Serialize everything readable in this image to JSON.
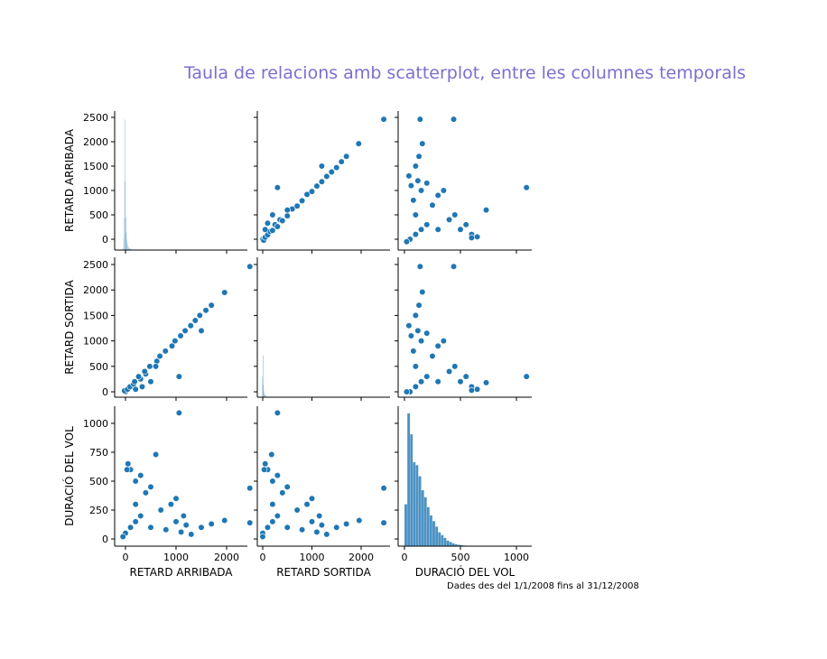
{
  "title": "Taula de relacions amb scatterplot, entre les columnes temporals",
  "footnote": "Dades des del 1/1/2008 fins al 31/12/2008",
  "chart_data": [
    {
      "type": "histogram",
      "ylabel": "RETARD ARRIBADA",
      "color": "#1f77b4",
      "xlim": [
        -214,
        2411
      ],
      "ylim": [
        -222,
        2630
      ],
      "yticks": [
        0,
        500,
        1000,
        1500,
        2000,
        2500
      ],
      "y2lim": [
        0,
        1000000
      ],
      "bins": [
        -60,
        -50,
        -40,
        -30,
        -20,
        -10,
        0,
        10,
        20,
        30,
        40,
        50,
        60,
        70,
        80,
        90,
        100,
        110,
        120,
        130,
        140,
        150,
        160,
        170,
        180,
        190
      ],
      "values": [
        2000,
        15000,
        90000,
        230000,
        940000,
        500000,
        240000,
        130000,
        80000,
        50000,
        35000,
        25000,
        18000,
        14000,
        11000,
        9000,
        7000,
        6000,
        5000,
        4000,
        3500,
        3000,
        2500,
        2000,
        1800
      ]
    },
    {
      "type": "scatter",
      "color": "#1f77b4",
      "xlim": [
        -110,
        2587
      ],
      "ylim": [
        -222,
        2630
      ],
      "x": [
        0,
        20,
        50,
        100,
        150,
        200,
        250,
        300,
        350,
        400,
        500,
        600,
        700,
        800,
        900,
        1000,
        1100,
        1200,
        1300,
        1400,
        1500,
        1600,
        1700,
        1950,
        2460,
        300,
        100,
        50,
        200,
        500,
        1200
      ],
      "y": [
        0,
        -20,
        40,
        90,
        160,
        180,
        300,
        260,
        400,
        380,
        480,
        620,
        680,
        790,
        920,
        980,
        1090,
        1180,
        1290,
        1380,
        1470,
        1590,
        1700,
        1960,
        2460,
        1060,
        330,
        200,
        500,
        600,
        1500
      ]
    },
    {
      "type": "scatter",
      "color": "#1f77b4",
      "xlim": [
        -56,
        1137
      ],
      "ylim": [
        -222,
        2630
      ],
      "x": [
        50,
        100,
        150,
        200,
        100,
        80,
        150,
        120,
        100,
        130,
        140,
        440,
        160,
        300,
        250,
        400,
        500,
        600,
        650,
        550,
        730,
        1090,
        40,
        60,
        200,
        350,
        450,
        20,
        300,
        600
      ],
      "y": [
        0,
        100,
        200,
        300,
        500,
        800,
        1000,
        1200,
        1500,
        1700,
        2460,
        2460,
        1960,
        900,
        700,
        400,
        200,
        100,
        50,
        300,
        600,
        1060,
        1300,
        1100,
        1150,
        1000,
        500,
        -50,
        200,
        30
      ]
    },
    {
      "type": "scatter",
      "ylabel": "RETARD SORTIDA",
      "color": "#1f77b4",
      "xlim": [
        -214,
        2411
      ],
      "ylim": [
        -106,
        2642
      ],
      "yticks": [
        0,
        500,
        1000,
        1500,
        2000,
        2500
      ],
      "x": [
        0,
        -20,
        40,
        90,
        160,
        180,
        300,
        260,
        400,
        380,
        480,
        620,
        680,
        790,
        920,
        980,
        1090,
        1180,
        1290,
        1380,
        1470,
        1590,
        1700,
        1960,
        2460,
        1060,
        330,
        200,
        500,
        600,
        1500
      ],
      "y": [
        0,
        20,
        50,
        100,
        150,
        200,
        250,
        300,
        350,
        400,
        500,
        600,
        700,
        800,
        900,
        1000,
        1100,
        1200,
        1300,
        1400,
        1500,
        1600,
        1700,
        1950,
        2460,
        300,
        100,
        50,
        200,
        500,
        1200
      ]
    },
    {
      "type": "histogram",
      "color": "#1f77b4",
      "xlim": [
        -110,
        2587
      ],
      "ylim": [
        0,
        2000000
      ],
      "bins": [
        -20,
        -10,
        0,
        10,
        20,
        30,
        40,
        50,
        60,
        70,
        80,
        90,
        100,
        110,
        120,
        130,
        140,
        150,
        160,
        170,
        180,
        190,
        200
      ],
      "values": [
        5000,
        300000,
        600000,
        180000,
        90000,
        60000,
        40000,
        30000,
        22000,
        16000,
        12000,
        9000,
        7000,
        6000,
        5000,
        4000,
        3500,
        3000,
        2500,
        2000,
        1800,
        1500
      ]
    },
    {
      "type": "scatter",
      "color": "#1f77b4",
      "xlim": [
        -56,
        1137
      ],
      "ylim": [
        -106,
        2642
      ],
      "x": [
        50,
        100,
        150,
        200,
        100,
        80,
        150,
        120,
        100,
        130,
        140,
        440,
        160,
        300,
        250,
        400,
        500,
        600,
        650,
        550,
        730,
        1090,
        40,
        60,
        200,
        350,
        450,
        20,
        300,
        600
      ],
      "y": [
        0,
        100,
        200,
        300,
        500,
        800,
        1000,
        1200,
        1500,
        1700,
        2460,
        2460,
        1960,
        900,
        700,
        400,
        200,
        100,
        50,
        300,
        180,
        300,
        1300,
        1100,
        1150,
        1000,
        500,
        0,
        200,
        30
      ]
    },
    {
      "type": "scatter",
      "xlabel": "RETARD ARRIBADA",
      "ylabel": "DURACIÓ DEL VOL",
      "color": "#1f77b4",
      "xlim": [
        -214,
        2411
      ],
      "ylim": [
        -62,
        1148
      ],
      "xticks": [
        0,
        1000,
        2000
      ],
      "yticks": [
        0,
        250,
        500,
        750,
        1000
      ],
      "x": [
        0,
        100,
        200,
        300,
        500,
        800,
        1000,
        1200,
        1500,
        1700,
        2460,
        2460,
        1960,
        900,
        700,
        400,
        200,
        100,
        50,
        300,
        600,
        1060,
        1300,
        1100,
        1150,
        1000,
        500,
        -50,
        200,
        30
      ],
      "y": [
        50,
        100,
        150,
        200,
        100,
        80,
        150,
        120,
        100,
        130,
        140,
        440,
        160,
        300,
        250,
        400,
        500,
        600,
        650,
        550,
        730,
        1090,
        40,
        60,
        200,
        350,
        450,
        20,
        300,
        600
      ]
    },
    {
      "type": "scatter",
      "xlabel": "RETARD SORTIDA",
      "color": "#1f77b4",
      "xlim": [
        -110,
        2587
      ],
      "ylim": [
        -62,
        1148
      ],
      "xticks": [
        0,
        1000,
        2000
      ],
      "x": [
        0,
        100,
        200,
        300,
        500,
        800,
        1000,
        1200,
        1500,
        1700,
        2460,
        2460,
        1960,
        900,
        700,
        400,
        200,
        100,
        50,
        300,
        180,
        300,
        1300,
        1100,
        1150,
        1000,
        500,
        0,
        200,
        30
      ],
      "y": [
        50,
        100,
        150,
        200,
        100,
        80,
        150,
        120,
        100,
        130,
        140,
        440,
        160,
        300,
        250,
        400,
        500,
        600,
        650,
        550,
        730,
        1090,
        40,
        60,
        200,
        350,
        450,
        20,
        300,
        600
      ]
    },
    {
      "type": "histogram",
      "xlabel": "DURACIÓ DEL VOL",
      "color": "#1f77b4",
      "xlim": [
        -56,
        1137
      ],
      "ylim": [
        0,
        100000
      ],
      "xticks": [
        0,
        500,
        1000
      ],
      "bins": [
        0,
        25,
        50,
        75,
        100,
        125,
        150,
        175,
        200,
        225,
        250,
        275,
        300,
        325,
        350,
        375,
        400,
        425,
        450,
        475,
        500,
        525,
        550,
        575,
        600
      ],
      "values": [
        30000,
        95000,
        80000,
        60000,
        58000,
        50000,
        40000,
        35000,
        28000,
        22000,
        18000,
        14000,
        10000,
        8000,
        6000,
        4000,
        3000,
        2000,
        1500,
        1000,
        800,
        500,
        300,
        200
      ]
    }
  ]
}
